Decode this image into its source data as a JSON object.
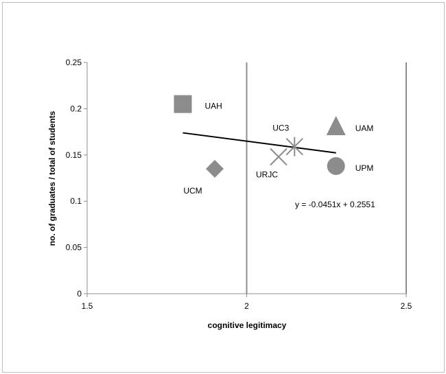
{
  "chart_data": {
    "type": "scatter",
    "title": "",
    "xlabel": "cognitive legitimacy",
    "ylabel": "no. of graduates / total of students",
    "xlim": [
      1.5,
      2.5
    ],
    "ylim": [
      0,
      0.25
    ],
    "x_ticks": [
      "1.5",
      "2",
      "2.5"
    ],
    "y_ticks": [
      "0",
      "0.05",
      "0.1",
      "0.15",
      "0.2",
      "0.25"
    ],
    "grid": "vertical at x = 2 and x = 2.5",
    "legend": "none",
    "points": [
      {
        "label": "UAH",
        "x": 1.8,
        "y": 0.205,
        "marker": "square"
      },
      {
        "label": "UCM",
        "x": 1.9,
        "y": 0.135,
        "marker": "diamond"
      },
      {
        "label": "UC3",
        "x": 2.15,
        "y": 0.159,
        "marker": "asterisk"
      },
      {
        "label": "URJC",
        "x": 2.1,
        "y": 0.148,
        "marker": "x"
      },
      {
        "label": "UAM",
        "x": 2.28,
        "y": 0.181,
        "marker": "triangle"
      },
      {
        "label": "UPM",
        "x": 2.28,
        "y": 0.138,
        "marker": "circle"
      }
    ],
    "trendline": {
      "x_range": [
        1.8,
        2.28
      ],
      "slope": -0.0451,
      "intercept": 0.2551,
      "equation": "y = -0.0451x + 0.2551"
    },
    "colors": {
      "marker": "#8c8c8c",
      "grid": "#8c8c8c",
      "trendline": "#000000"
    }
  }
}
